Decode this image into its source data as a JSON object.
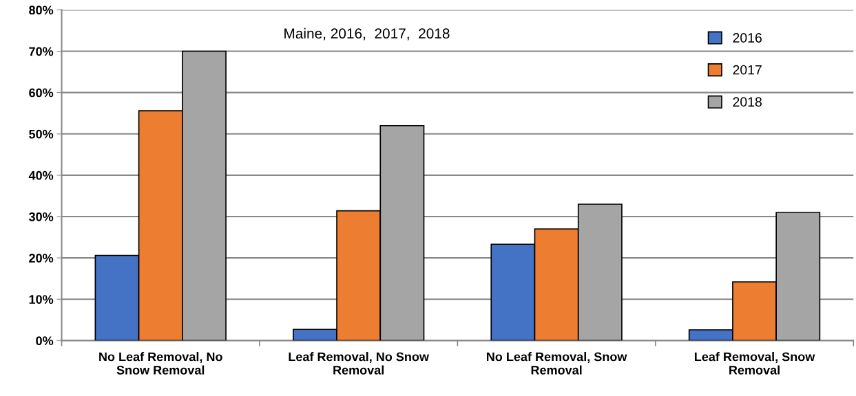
{
  "chart_data": {
    "type": "bar",
    "title": "Maine, 2016,  2017,  2018",
    "categories": [
      "No Leaf Removal, No\nSnow Removal",
      "Leaf Removal, No Snow\nRemoval",
      "No Leaf Removal, Snow\nRemoval",
      "Leaf Removal, Snow\nRemoval"
    ],
    "series": [
      {
        "name": "2016",
        "color": "#4472c4",
        "values": [
          20.6,
          2.7,
          23.3,
          2.6
        ]
      },
      {
        "name": "2017",
        "color": "#ed7d31",
        "values": [
          55.6,
          31.4,
          27.0,
          14.2
        ]
      },
      {
        "name": "2018",
        "color": "#a5a5a5",
        "values": [
          70.0,
          52.0,
          33.0,
          31.0
        ]
      }
    ],
    "ylim": [
      0,
      80
    ],
    "yticks": [
      {
        "value": 0,
        "label": "0%"
      },
      {
        "value": 10,
        "label": "10%"
      },
      {
        "value": 20,
        "label": "20%"
      },
      {
        "value": 30,
        "label": "30%"
      },
      {
        "value": 40,
        "label": "40%"
      },
      {
        "value": 50,
        "label": "50%"
      },
      {
        "value": 60,
        "label": "60%"
      },
      {
        "value": 70,
        "label": "70%"
      },
      {
        "value": 80,
        "label": "80%"
      }
    ],
    "grid": "y",
    "legend": "top right"
  }
}
